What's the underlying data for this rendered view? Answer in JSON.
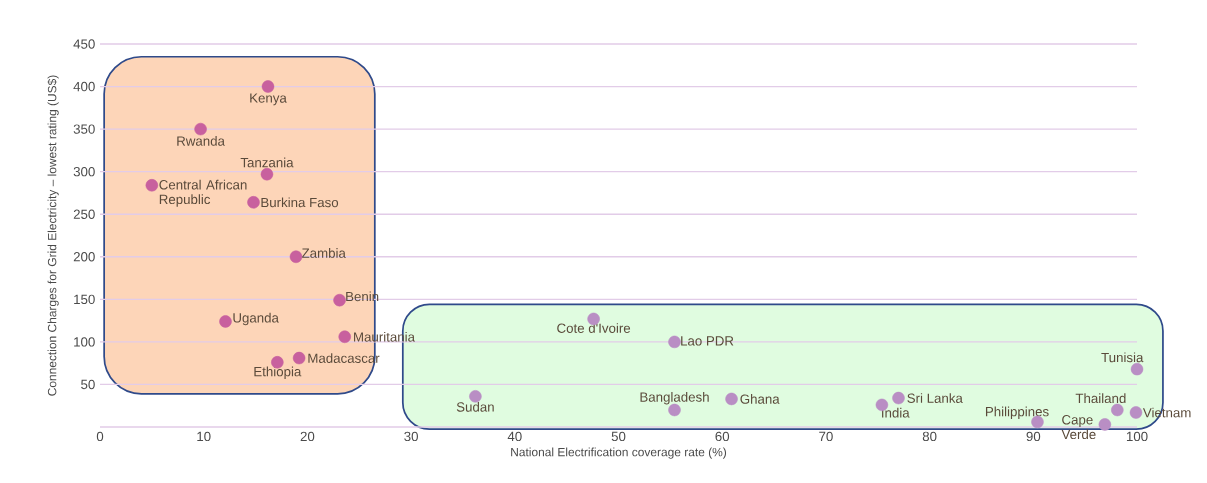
{
  "chart_data": {
    "type": "scatter",
    "xlabel": "National Electrification coverage rate (%)",
    "ylabel": "Connection Charges for Grid Electricity – lowest rating (US$)",
    "x": [
      16.2,
      9.7,
      16.1,
      5.0,
      14.8,
      18.9,
      23.1,
      12.1,
      23.6,
      19.2,
      17.1,
      47.6,
      55.4,
      36.2,
      55.4,
      60.9,
      75.4,
      77.0,
      90.4,
      96.9,
      98.1,
      99.9,
      100
    ],
    "values": [
      400,
      350,
      297,
      284,
      264,
      200,
      149,
      124,
      106,
      81,
      76,
      127,
      100,
      36,
      20,
      33,
      26,
      34,
      6,
      3,
      20,
      17,
      68
    ],
    "colors": [
      "#c8609e",
      "#c8609e",
      "#c8609e",
      "#c8609e",
      "#c8609e",
      "#c8609e",
      "#c8609e",
      "#c8609e",
      "#c8609e",
      "#c8609e",
      "#c8609e",
      "#b98ec4",
      "#b98ec4",
      "#b98ec4",
      "#b98ec4",
      "#b98ec4",
      "#b98ec4",
      "#b98ec4",
      "#b98ec4",
      "#b98ec4",
      "#b98ec4",
      "#b98ec4",
      "#b98ec4"
    ],
    "marker": "circle",
    "xlim": [
      0,
      100
    ],
    "xticks": [
      0,
      10,
      20,
      30,
      40,
      50,
      60,
      70,
      80,
      90,
      100
    ],
    "ylim": [
      0,
      450
    ],
    "yticks": [
      {
        "value": 0,
        "label": null
      },
      50,
      100,
      150,
      200,
      250,
      300,
      350,
      400,
      450
    ],
    "grid": "y",
    "annotations": [
      {
        "text": "Kenya",
        "x": 16.2,
        "y": 400
      },
      {
        "text": "Rwanda",
        "x": 9.7,
        "y": 350
      },
      {
        "text": "Tanzania",
        "x": 16.1,
        "y": 297
      },
      {
        "text": "Central African Republic",
        "x": 5.0,
        "y": 284
      },
      {
        "text": "Burkina Faso",
        "x": 14.8,
        "y": 264
      },
      {
        "text": "Zambia",
        "x": 18.9,
        "y": 200
      },
      {
        "text": "Benin",
        "x": 23.1,
        "y": 149
      },
      {
        "text": "Uganda",
        "x": 12.1,
        "y": 124
      },
      {
        "text": "Mauritania",
        "x": 23.6,
        "y": 106
      },
      {
        "text": "Madacascar",
        "x": 19.2,
        "y": 81
      },
      {
        "text": "Ethiopia",
        "x": 17.1,
        "y": 76
      },
      {
        "text": "Cote d'Ivoire",
        "x": 47.6,
        "y": 127
      },
      {
        "text": "Lao PDR",
        "x": 55.4,
        "y": 100
      },
      {
        "text": "Sudan",
        "x": 36.2,
        "y": 36
      },
      {
        "text": "Bangladesh",
        "x": 55.4,
        "y": 20
      },
      {
        "text": "Ghana",
        "x": 60.9,
        "y": 33
      },
      {
        "text": "India",
        "x": 75.4,
        "y": 26
      },
      {
        "text": "Sri Lanka",
        "x": 77.0,
        "y": 34
      },
      {
        "text": "Philippines",
        "x": 90.4,
        "y": 6
      },
      {
        "text": "Cape Verde",
        "x": 96.9,
        "y": 3
      },
      {
        "text": "Thailand",
        "x": 98.1,
        "y": 20
      },
      {
        "text": "Vietnam",
        "x": 99.9,
        "y": 17
      },
      {
        "text": "Tunisia",
        "x": 100,
        "y": 68
      }
    ]
  }
}
